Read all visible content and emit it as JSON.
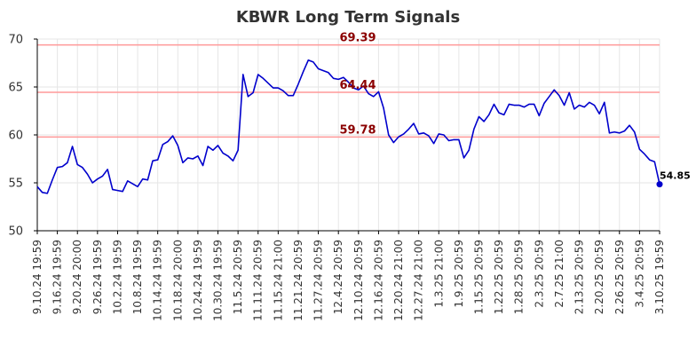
{
  "chart_data": {
    "type": "line",
    "title": "KBWR Long Term Signals",
    "ylim": [
      50,
      70
    ],
    "yticks": [
      "50",
      "55",
      "60",
      "65",
      "70"
    ],
    "x_ticks": [
      "9.10.24 19:59",
      "9.16.24 19:59",
      "9.20.24 20:00",
      "9.26.24 19:59",
      "10.2.24 19:59",
      "10.8.24 19:59",
      "10.14.24 19:59",
      "10.18.24 20:00",
      "10.24.24 19:59",
      "10.30.24 19:59",
      "11.5.24 20:59",
      "11.11.24 20:59",
      "11.15.24 21:00",
      "11.21.24 20:59",
      "11.27.24 20:59",
      "12.4.24 20:59",
      "12.10.24 20:59",
      "12.16.24 20:59",
      "12.20.24 21:00",
      "12.27.24 21:00",
      "1.3.25 21:00",
      "1.9.25 20:59",
      "1.15.25 20:59",
      "1.22.25 20:59",
      "1.28.25 20:59",
      "2.3.25 20:59",
      "2.7.25 21:00",
      "2.13.25 20:59",
      "2.20.25 20:59",
      "2.26.25 20:59",
      "3.4.25 20:59",
      "3.10.25 19:59"
    ],
    "grid": true,
    "series": [
      {
        "color": "#0000cc",
        "values": [
          54.6,
          54.0,
          53.9,
          55.3,
          56.6,
          56.7,
          57.1,
          58.8,
          56.9,
          56.6,
          55.9,
          55.0,
          55.4,
          55.7,
          56.4,
          54.3,
          54.2,
          54.1,
          55.2,
          54.9,
          54.6,
          55.4,
          55.3,
          57.3,
          57.4,
          59.0,
          59.3,
          59.9,
          58.9,
          57.1,
          57.6,
          57.5,
          57.8,
          56.8,
          58.8,
          58.4,
          58.9,
          58.1,
          57.8,
          57.3,
          58.4,
          66.3,
          64.0,
          64.4,
          66.3,
          65.9,
          65.4,
          64.9,
          64.9,
          64.6,
          64.1,
          64.1,
          65.3,
          66.6,
          67.8,
          67.6,
          66.9,
          66.7,
          66.5,
          65.9,
          65.8,
          66.0,
          65.5,
          64.9,
          64.7,
          65.1,
          64.3,
          64.0,
          64.5,
          62.8,
          60.0,
          59.2,
          59.8,
          60.1,
          60.6,
          61.2,
          60.1,
          60.2,
          59.9,
          59.1,
          60.1,
          60.0,
          59.4,
          59.5,
          59.5,
          57.6,
          58.4,
          60.6,
          61.9,
          61.4,
          62.1,
          63.2,
          62.3,
          62.1,
          63.2,
          63.1,
          63.1,
          62.9,
          63.2,
          63.2,
          62.0,
          63.3,
          64.0,
          64.7,
          64.1,
          63.1,
          64.4,
          62.7,
          63.1,
          62.9,
          63.4,
          63.1,
          62.2,
          63.4,
          60.2,
          60.3,
          60.2,
          60.4,
          61.0,
          60.3,
          58.5,
          58.0,
          57.4,
          57.2,
          54.85
        ]
      }
    ],
    "reference_lines": [
      {
        "value": 69.39,
        "label": "69.39",
        "color": "#ff9999",
        "text_color": "#8b0000"
      },
      {
        "value": 64.44,
        "label": "64.44",
        "color": "#ff9999",
        "text_color": "#8b0000"
      },
      {
        "value": 59.78,
        "label": "59.78",
        "color": "#ff9999",
        "text_color": "#8b0000"
      }
    ],
    "last_value_label": "54.85",
    "grid_color": "#e6e6e6",
    "axis_color": "#000000"
  }
}
